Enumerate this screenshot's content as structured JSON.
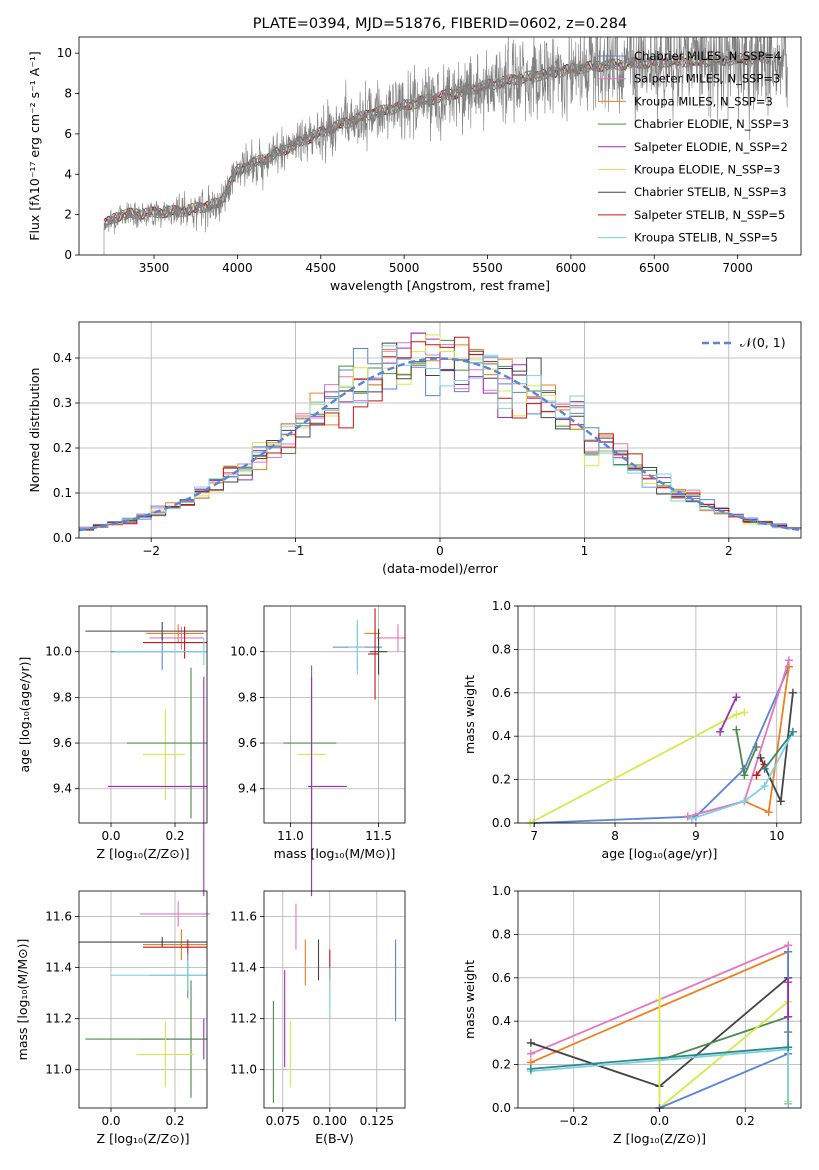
{
  "chart_data": [
    {
      "id": "spectrum",
      "type": "line",
      "title": "PLATE=0394, MJD=51876, FIBERID=0602, z=0.284",
      "xlabel": "wavelength [Angstrom, rest frame]",
      "ylabel": "Flux [fλ10⁻¹⁷ erg cm⁻² s⁻¹ A⁻¹]",
      "xlim": [
        3050,
        7380
      ],
      "ylim": [
        0,
        10.8
      ],
      "xticks": [
        3500,
        4000,
        4500,
        5000,
        5500,
        6000,
        6500,
        7000
      ],
      "yticks": [
        0,
        2,
        4,
        6,
        8,
        10
      ],
      "grid": false,
      "legend_position": "right",
      "continuum": {
        "x": [
          3200,
          3300,
          3500,
          3700,
          3900,
          3950,
          4000,
          4200,
          4400,
          4600,
          4800,
          5000,
          5200,
          5400,
          5600,
          5800,
          6000,
          6200,
          6400,
          6600,
          6800,
          7000,
          7200
        ],
        "y": [
          1.5,
          2.0,
          2.1,
          2.2,
          2.6,
          3.5,
          4.2,
          4.9,
          5.7,
          6.4,
          7.0,
          7.4,
          7.8,
          8.2,
          8.6,
          8.9,
          9.2,
          9.4,
          9.5,
          9.6,
          9.6,
          9.7,
          9.8
        ]
      },
      "series": [
        {
          "name": "Chabrier MILES, N_SSP=4",
          "color": "#5b84d6"
        },
        {
          "name": "Salpeter MILES, N_SSP=3",
          "color": "#e377c2"
        },
        {
          "name": "Kroupa MILES, N_SSP=3",
          "color": "#ef7f22"
        },
        {
          "name": "Chabrier ELODIE, N_SSP=3",
          "color": "#4e8a4e"
        },
        {
          "name": "Salpeter ELODIE, N_SSP=2",
          "color": "#9b30b8"
        },
        {
          "name": "Kroupa ELODIE, N_SSP=3",
          "color": "#d6e84a"
        },
        {
          "name": "Chabrier STELIB, N_SSP=3",
          "color": "#444444"
        },
        {
          "name": "Salpeter STELIB, N_SSP=5",
          "color": "#c41616"
        },
        {
          "name": "Kroupa STELIB, N_SSP=5",
          "color": "#7fd0e0"
        }
      ],
      "data_color": "#7f7f7f"
    },
    {
      "id": "residuals",
      "type": "line",
      "xlabel": "(data-model)/error",
      "ylabel": "Normed distribution",
      "xlim": [
        -2.5,
        2.5
      ],
      "ylim": [
        0,
        0.48
      ],
      "xticks": [
        -2,
        -1,
        0,
        1,
        2
      ],
      "yticks": [
        0.0,
        0.1,
        0.2,
        0.3,
        0.4
      ],
      "grid": true,
      "legend_position": "top-right",
      "reference": {
        "name": "𝒩(0, 1)",
        "color": "#5b84d6",
        "mean": 0,
        "sigma": 1
      }
    },
    {
      "id": "age-vs-Z",
      "type": "scatter",
      "xlabel": "Z [log₁₀(Z/Z⊙)]",
      "ylabel": "age  [log₁₀(age/yr)]",
      "xlim": [
        -0.1,
        0.3
      ],
      "ylim": [
        9.25,
        10.2
      ],
      "xticks": [
        0.0,
        0.2
      ],
      "yticks": [
        9.4,
        9.6,
        9.8,
        10.0
      ],
      "grid": true,
      "points": [
        {
          "x": 0.21,
          "y": 10.08,
          "xerr": [
            0.1,
            0.08
          ],
          "yerr": [
            0.04,
            0.04
          ],
          "color": "#ef7f22"
        },
        {
          "x": 0.22,
          "y": 10.06,
          "xerr": [
            0.1,
            0.07
          ],
          "yerr": [
            0.05,
            0.05
          ],
          "color": "#e377c2"
        },
        {
          "x": 0.16,
          "y": 10.0,
          "xerr": [
            0.16,
            0.14
          ],
          "yerr": [
            0.08,
            0.08
          ],
          "color": "#5b84d6"
        },
        {
          "x": 0.16,
          "y": 10.09,
          "xerr": [
            0.24,
            0.14
          ],
          "yerr": [
            0.04,
            0.04
          ],
          "color": "#444444"
        },
        {
          "x": 0.23,
          "y": 10.04,
          "xerr": [
            0.13,
            0.07
          ],
          "yerr": [
            0.07,
            0.07
          ],
          "color": "#c41616"
        },
        {
          "x": 0.17,
          "y": 9.55,
          "xerr": [
            0.07,
            0.06
          ],
          "yerr": [
            0.2,
            0.2
          ],
          "color": "#d6e84a"
        },
        {
          "x": 0.25,
          "y": 9.6,
          "xerr": [
            0.2,
            0.05
          ],
          "yerr": [
            0.33,
            0.33
          ],
          "color": "#4e8a4e"
        },
        {
          "x": 0.29,
          "y": 9.41,
          "xerr": [
            0.3,
            0.01
          ],
          "yerr": [
            0.48,
            0.48
          ],
          "color": "#9b30b8"
        },
        {
          "x": 0.29,
          "y": 10.0,
          "xerr": [
            0.28,
            0.01
          ],
          "yerr": [
            0.06,
            0.06
          ],
          "color": "#7fd0e0"
        }
      ]
    },
    {
      "id": "age-vs-mass",
      "type": "scatter",
      "xlabel": "mass [log₁₀(M/M⊙)]",
      "ylabel": "",
      "xlim": [
        10.85,
        11.65
      ],
      "ylim": [
        9.25,
        10.2
      ],
      "xticks": [
        11.0,
        11.5
      ],
      "yticks": [
        9.4,
        9.6,
        9.8,
        10.0
      ],
      "grid": true,
      "points": [
        {
          "x": 11.61,
          "y": 10.06,
          "xerr": [
            0.12,
            0.04
          ],
          "yerr": [
            0.06,
            0.06
          ],
          "color": "#e377c2"
        },
        {
          "x": 11.48,
          "y": 10.08,
          "xerr": [
            0.06,
            0.03
          ],
          "yerr": [
            0.04,
            0.04
          ],
          "color": "#ef7f22"
        },
        {
          "x": 11.38,
          "y": 10.02,
          "xerr": [
            0.14,
            0.14
          ],
          "yerr": [
            0.1,
            0.1
          ],
          "color": "#5b84d6"
        },
        {
          "x": 11.5,
          "y": 10.0,
          "xerr": [
            0.05,
            0.05
          ],
          "yerr": [
            0.1,
            0.1
          ],
          "color": "#444444"
        },
        {
          "x": 11.48,
          "y": 9.99,
          "xerr": [
            0.04,
            0.02
          ],
          "yerr": [
            0.2,
            0.2
          ],
          "color": "#c41616"
        },
        {
          "x": 11.38,
          "y": 10.02,
          "xerr": [
            0.05,
            0.04
          ],
          "yerr": [
            0.12,
            0.12
          ],
          "color": "#7fd0e0"
        },
        {
          "x": 11.12,
          "y": 9.6,
          "xerr": [
            0.16,
            0.14
          ],
          "yerr": [
            0.34,
            0.34
          ],
          "color": "#4e8a4e"
        },
        {
          "x": 11.12,
          "y": 9.55,
          "xerr": [
            0.08,
            0.08
          ],
          "yerr": [
            0.2,
            0.2
          ],
          "color": "#d6e84a"
        },
        {
          "x": 11.12,
          "y": 9.41,
          "xerr": [
            0.02,
            0.2
          ],
          "yerr": [
            0.48,
            0.48
          ],
          "color": "#9b30b8"
        }
      ]
    },
    {
      "id": "weight-vs-age",
      "type": "line",
      "xlabel": "age  [log₁₀(age/yr)]",
      "ylabel": "mass weight",
      "xlim": [
        6.8,
        10.3
      ],
      "ylim": [
        0,
        1
      ],
      "xticks": [
        7,
        8,
        9,
        10
      ],
      "yticks": [
        0.0,
        0.2,
        0.4,
        0.6,
        0.8,
        1.0
      ],
      "grid": true,
      "series": [
        {
          "color": "#5b84d6",
          "x": [
            7.0,
            9.0,
            9.6,
            10.15
          ],
          "y": [
            0.0,
            0.03,
            0.25,
            0.72
          ]
        },
        {
          "color": "#ef7f22",
          "x": [
            8.9,
            9.6,
            9.9,
            10.15
          ],
          "y": [
            0.03,
            0.1,
            0.05,
            0.72
          ]
        },
        {
          "color": "#e377c2",
          "x": [
            8.9,
            9.6,
            10.15
          ],
          "y": [
            0.03,
            0.1,
            0.75
          ]
        },
        {
          "color": "#d6e84a",
          "x": [
            6.95,
            9.5,
            9.6
          ],
          "y": [
            0.0,
            0.5,
            0.51
          ]
        },
        {
          "color": "#9b30b8",
          "x": [
            9.3,
            9.5
          ],
          "y": [
            0.42,
            0.58
          ]
        },
        {
          "color": "#4e8a4e",
          "x": [
            9.5,
            9.6,
            9.75
          ],
          "y": [
            0.43,
            0.22,
            0.35
          ]
        },
        {
          "color": "#444444",
          "x": [
            9.8,
            10.05,
            10.2
          ],
          "y": [
            0.3,
            0.1,
            0.6
          ]
        },
        {
          "color": "#c41616",
          "x": [
            9.75,
            9.85
          ],
          "y": [
            0.22,
            0.27
          ]
        },
        {
          "color": "#7fd0e0",
          "x": [
            8.95,
            9.6,
            9.85,
            10.2
          ],
          "y": [
            0.02,
            0.1,
            0.17,
            0.42
          ]
        },
        {
          "color": "#2a8a8a",
          "x": [
            9.85,
            10.2
          ],
          "y": [
            0.25,
            0.42
          ]
        }
      ]
    },
    {
      "id": "mass-vs-Z",
      "type": "scatter",
      "xlabel": "Z [log₁₀(Z/Z⊙)]",
      "ylabel": "mass [log₁₀(M/M⊙)]",
      "xlim": [
        -0.1,
        0.3
      ],
      "ylim": [
        10.85,
        11.7
      ],
      "xticks": [
        0.0,
        0.2
      ],
      "yticks": [
        11.0,
        11.2,
        11.4,
        11.6
      ],
      "grid": true,
      "points": [
        {
          "x": 0.21,
          "y": 11.61,
          "xerr": [
            0.12,
            0.1
          ],
          "yerr": [
            0.05,
            0.05
          ],
          "color": "#e377c2"
        },
        {
          "x": 0.22,
          "y": 11.49,
          "xerr": [
            0.12,
            0.08
          ],
          "yerr": [
            0.06,
            0.06
          ],
          "color": "#ef7f22"
        },
        {
          "x": 0.16,
          "y": 11.5,
          "xerr": [
            0.26,
            0.14
          ],
          "yerr": [
            0.02,
            0.02
          ],
          "color": "#444444"
        },
        {
          "x": 0.24,
          "y": 11.48,
          "xerr": [
            0.14,
            0.06
          ],
          "yerr": [
            0.03,
            0.03
          ],
          "color": "#c41616"
        },
        {
          "x": 0.24,
          "y": 11.37,
          "xerr": [
            0.12,
            0.06
          ],
          "yerr": [
            0.09,
            0.09
          ],
          "color": "#5b84d6"
        },
        {
          "x": 0.24,
          "y": 11.37,
          "xerr": [
            0.24,
            0.06
          ],
          "yerr": [
            0.06,
            0.06
          ],
          "color": "#7fd0e0"
        },
        {
          "x": 0.29,
          "y": 11.12,
          "xerr": [
            0.2,
            0.01
          ],
          "yerr": [
            0.08,
            0.08
          ],
          "color": "#9b30b8"
        },
        {
          "x": 0.25,
          "y": 11.12,
          "xerr": [
            0.33,
            0.05
          ],
          "yerr": [
            0.23,
            0.23
          ],
          "color": "#4e8a4e"
        },
        {
          "x": 0.17,
          "y": 11.06,
          "xerr": [
            0.09,
            0.09
          ],
          "yerr": [
            0.13,
            0.13
          ],
          "color": "#d6e84a"
        }
      ]
    },
    {
      "id": "mass-vs-EBV",
      "type": "scatter",
      "xlabel": "E(B-V)",
      "ylabel": "",
      "xlim": [
        0.065,
        0.14
      ],
      "ylim": [
        10.85,
        11.7
      ],
      "xticks": [
        0.075,
        0.1,
        0.125
      ],
      "yticks": [
        11.0,
        11.2,
        11.4,
        11.6
      ],
      "grid": true,
      "points": [
        {
          "x": 0.082,
          "y": 11.56,
          "yerr": [
            0.09,
            0.09
          ],
          "color": "#e377c2"
        },
        {
          "x": 0.087,
          "y": 11.42,
          "yerr": [
            0.09,
            0.09
          ],
          "color": "#ef7f22"
        },
        {
          "x": 0.094,
          "y": 11.43,
          "yerr": [
            0.08,
            0.08
          ],
          "color": "#444444"
        },
        {
          "x": 0.1,
          "y": 11.41,
          "yerr": [
            0.06,
            0.06
          ],
          "color": "#c41616"
        },
        {
          "x": 0.1,
          "y": 11.3,
          "yerr": [
            0.1,
            0.1
          ],
          "color": "#7fd0e0"
        },
        {
          "x": 0.135,
          "y": 11.35,
          "yerr": [
            0.16,
            0.16
          ],
          "color": "#5b84d6"
        },
        {
          "x": 0.076,
          "y": 11.2,
          "yerr": [
            0.19,
            0.19
          ],
          "color": "#9b30b8"
        },
        {
          "x": 0.079,
          "y": 11.06,
          "yerr": [
            0.13,
            0.13
          ],
          "color": "#d6e84a"
        },
        {
          "x": 0.07,
          "y": 11.07,
          "yerr": [
            0.2,
            0.2
          ],
          "color": "#4e8a4e"
        }
      ]
    },
    {
      "id": "weight-vs-Z",
      "type": "line",
      "xlabel": "Z [log₁₀(Z/Z⊙)]",
      "ylabel": "mass weight",
      "xlim": [
        -0.33,
        0.33
      ],
      "ylim": [
        0,
        1
      ],
      "xticks": [
        -0.2,
        0.0,
        0.2
      ],
      "yticks": [
        0.0,
        0.2,
        0.4,
        0.6,
        0.8,
        1.0
      ],
      "grid": true,
      "series": [
        {
          "color": "#e377c2",
          "x": [
            -0.3,
            0.3
          ],
          "y": [
            0.25,
            0.75
          ]
        },
        {
          "color": "#ef7f22",
          "x": [
            -0.3,
            0.3,
            0.3
          ],
          "y": [
            0.21,
            0.72,
            0.02
          ]
        },
        {
          "color": "#444444",
          "x": [
            -0.3,
            0.0,
            0.3
          ],
          "y": [
            0.3,
            0.1,
            0.6
          ]
        },
        {
          "color": "#4e8a4e",
          "x": [
            0.0,
            0.3,
            0.3
          ],
          "y": [
            0.22,
            0.42,
            0.35
          ]
        },
        {
          "color": "#d6e84a",
          "x": [
            0.0,
            0.0,
            0.3,
            0.3
          ],
          "y": [
            0.5,
            0.0,
            0.49,
            0.03
          ]
        },
        {
          "color": "#5b84d6",
          "x": [
            0.0,
            0.3,
            0.3
          ],
          "y": [
            0.0,
            0.25,
            0.72
          ]
        },
        {
          "color": "#7fd0e0",
          "x": [
            -0.3,
            0.3,
            0.3
          ],
          "y": [
            0.17,
            0.27,
            0.02
          ]
        },
        {
          "color": "#2a8a8a",
          "x": [
            -0.3,
            0.3
          ],
          "y": [
            0.18,
            0.28
          ]
        },
        {
          "color": "#9b30b8",
          "x": [
            0.3,
            0.3
          ],
          "y": [
            0.42,
            0.58
          ]
        }
      ]
    }
  ]
}
